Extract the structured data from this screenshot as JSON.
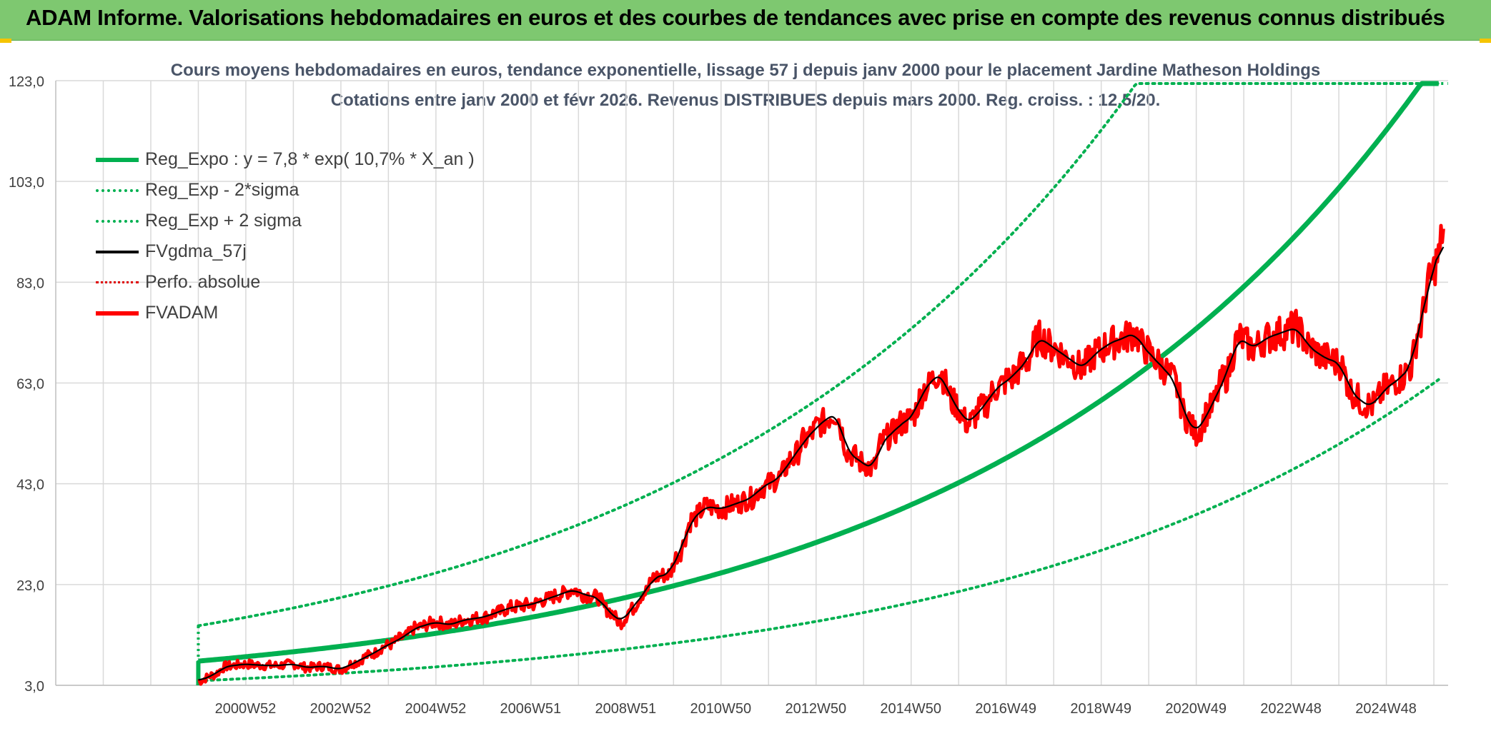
{
  "header": {
    "title": "ADAM Informe. Valorisations hebdomadaires en euros et des courbes de tendances avec prise en compte des revenus connus distribués"
  },
  "chart_data": {
    "type": "line",
    "title_line1": "Cours moyens hebdomadaires en euros, tendance exponentielle, lissage 57 j depuis janv 2000 pour le placement Jardine Matheson Holdings",
    "title_line2": "Cotations entre janv 2000 et févr 2026. Revenus DISTRIBUES depuis mars 2000. Reg. croiss. : 12,5/20.",
    "ylim": [
      3,
      123
    ],
    "y_ticks": [
      3,
      23,
      43,
      63,
      83,
      103,
      123
    ],
    "y_tick_labels": [
      "3,0",
      "23,0",
      "43,0",
      "63,0",
      "83,0",
      "103,0",
      "123,0"
    ],
    "xlim": [
      1997,
      2026.3
    ],
    "x_tick_labels": [
      "2000W52",
      "2002W52",
      "2004W52",
      "2006W51",
      "2008W51",
      "2010W50",
      "2012W50",
      "2014W50",
      "2016W49",
      "2018W49",
      "2020W49",
      "2022W48",
      "2024W48"
    ],
    "x_tick_positions": [
      2000.0,
      2002.0,
      2004.0,
      2006.0,
      2008.0,
      2010.0,
      2012.0,
      2014.0,
      2016.0,
      2018.0,
      2020.0,
      2022.0,
      2024.0
    ],
    "grid": true,
    "legend_position": "top-left",
    "regression": {
      "a": 7.8,
      "rate": 0.107,
      "start": 2000.0
    },
    "series": [
      {
        "name": "Reg_Expo : y = 7,8 * exp( 10,7% *  X_an )",
        "style": "solid-thick",
        "color": "#00b050"
      },
      {
        "name": "Reg_Exp - 2*sigma",
        "style": "dotted",
        "color": "#00b050"
      },
      {
        "name": "Reg_Exp + 2 sigma",
        "style": "dotted",
        "color": "#00b050"
      },
      {
        "name": "FVgdma_57j",
        "style": "solid-thin",
        "color": "#000000"
      },
      {
        "name": "Perfo. absolue",
        "style": "dotted-thin",
        "color": "#e00000"
      },
      {
        "name": "FVADAM",
        "style": "solid-thick",
        "color": "#ff0000",
        "x": [
          2000.0,
          2000.3,
          2000.6,
          2001.0,
          2001.3,
          2001.6,
          2002.0,
          2002.3,
          2002.6,
          2003.0,
          2003.3,
          2003.6,
          2004.0,
          2004.3,
          2004.6,
          2005.0,
          2005.3,
          2005.6,
          2006.0,
          2006.3,
          2006.6,
          2007.0,
          2007.3,
          2007.6,
          2007.9,
          2008.1,
          2008.4,
          2008.6,
          2008.9,
          2009.1,
          2009.4,
          2009.6,
          2009.9,
          2010.1,
          2010.4,
          2010.7,
          2011.0,
          2011.3,
          2011.6,
          2011.9,
          2012.2,
          2012.5,
          2012.8,
          2013.1,
          2013.4,
          2013.7,
          2014.0,
          2014.2,
          2014.4,
          2014.6,
          2014.8,
          2015.0,
          2015.3,
          2015.6,
          2015.9,
          2016.2,
          2016.5,
          2016.8,
          2017.1,
          2017.4,
          2017.7,
          2018.0,
          2018.3,
          2018.6,
          2018.9,
          2019.2,
          2019.5,
          2019.7,
          2019.9,
          2020.1,
          2020.3,
          2020.5,
          2020.8,
          2021.0,
          2021.3,
          2021.6,
          2021.9,
          2022.2,
          2022.5,
          2022.8,
          2023.1,
          2023.4,
          2023.7,
          2024.0,
          2024.3,
          2024.5,
          2024.7,
          2025.0,
          2025.3,
          2025.5,
          2025.7,
          2025.9,
          2026.1,
          2026.2
        ],
        "values": [
          3.8,
          5.0,
          6.8,
          7.2,
          7.0,
          6.9,
          7.2,
          6.5,
          6.8,
          6.2,
          7.5,
          9.0,
          11.0,
          12.5,
          14.5,
          15.5,
          15.0,
          16.0,
          16.5,
          17.5,
          18.5,
          19.0,
          20.0,
          21.0,
          22.0,
          21.0,
          20.5,
          18.0,
          15.5,
          18.0,
          21.5,
          24.5,
          25.0,
          29.0,
          36.0,
          38.5,
          38.0,
          39.0,
          40.0,
          42.5,
          44.0,
          48.0,
          52.0,
          55.0,
          57.0,
          49.0,
          47.0,
          46.0,
          51.5,
          53.0,
          55.0,
          56.0,
          62.0,
          65.0,
          59.0,
          55.0,
          58.0,
          62.0,
          64.0,
          67.0,
          72.0,
          70.0,
          68.0,
          66.0,
          69.0,
          71.0,
          72.0,
          73.0,
          70.0,
          68.0,
          66.0,
          64.0,
          56.0,
          53.0,
          58.0,
          64.0,
          72.0,
          70.0,
          72.0,
          73.0,
          74.0,
          70.0,
          68.0,
          67.0,
          61.0,
          59.0,
          58.5,
          62.0,
          64.0,
          66.0,
          74.0,
          83.0,
          88.0,
          94.0
        ]
      }
    ]
  }
}
